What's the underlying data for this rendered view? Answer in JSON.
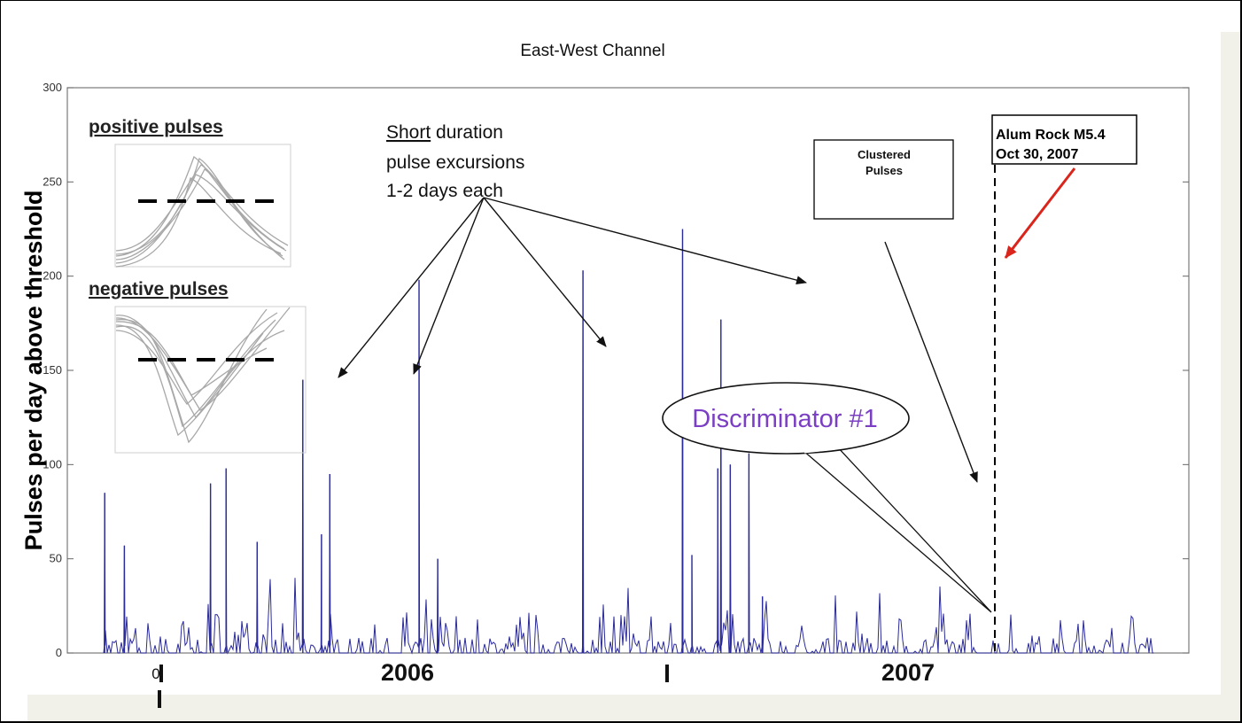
{
  "chart_data": {
    "type": "line",
    "title": "East-West Channel",
    "ylabel": "Pulses per day above threshold",
    "xlabel": "",
    "ylim": [
      0,
      300
    ],
    "yticks": [
      0,
      50,
      100,
      150,
      200,
      250,
      300
    ],
    "xtick_labels": [
      "0",
      "2006",
      "2007"
    ],
    "grid": false,
    "series": [
      {
        "color": "#2a2a9a",
        "peaks": [
          {
            "date": "2005-07-06",
            "value": 85
          },
          {
            "date": "2005-07-25",
            "value": 57
          },
          {
            "date": "2005-10-16",
            "value": 90
          },
          {
            "date": "2005-10-31",
            "value": 98
          },
          {
            "date": "2005-11-30",
            "value": 59
          },
          {
            "date": "2006-01-13",
            "value": 145
          },
          {
            "date": "2006-01-31",
            "value": 63
          },
          {
            "date": "2006-02-08",
            "value": 95
          },
          {
            "date": "2006-05-05",
            "value": 198
          },
          {
            "date": "2006-05-23",
            "value": 50
          },
          {
            "date": "2006-10-10",
            "value": 203
          },
          {
            "date": "2007-01-14",
            "value": 225
          },
          {
            "date": "2007-01-23",
            "value": 52
          },
          {
            "date": "2007-02-17",
            "value": 98
          },
          {
            "date": "2007-02-20",
            "value": 177
          },
          {
            "date": "2007-03-01",
            "value": 100
          },
          {
            "date": "2007-03-19",
            "value": 106
          },
          {
            "date": "2007-04-01",
            "value": 30
          }
        ]
      }
    ]
  },
  "annotations": {
    "short_duration": {
      "underlined": "Short",
      "line1_rest": " duration",
      "line2": "pulse excursions",
      "line3": "1-2 days each"
    },
    "clustered": {
      "line1": "Clustered",
      "line2": "Pulses"
    },
    "alum_rock": {
      "line1": "Alum Rock M5.4",
      "line2": "Oct 30, 2007"
    },
    "discriminator": "Discriminator #1",
    "positive_label": "positive pulses",
    "negative_label": "negative pulses",
    "arrow_color": "#d9251c"
  }
}
